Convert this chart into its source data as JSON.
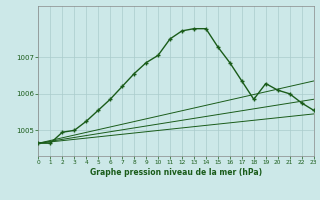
{
  "title": "Graphe pression niveau de la mer (hPa)",
  "background_color": "#cce8e8",
  "grid_color": "#aacccc",
  "line_color": "#1a5c1a",
  "xlim": [
    0,
    23
  ],
  "ylim": [
    1004.3,
    1008.4
  ],
  "yticks": [
    1005,
    1006,
    1007
  ],
  "xticks": [
    0,
    1,
    2,
    3,
    4,
    5,
    6,
    7,
    8,
    9,
    10,
    11,
    12,
    13,
    14,
    15,
    16,
    17,
    18,
    19,
    20,
    21,
    22,
    23
  ],
  "series1_x": [
    0,
    1,
    2,
    3,
    4,
    5,
    6,
    7,
    8,
    9,
    10,
    11,
    12,
    13,
    14,
    15,
    16,
    17,
    18,
    19,
    20,
    21,
    22,
    23
  ],
  "series1_y": [
    1004.65,
    1004.65,
    1004.95,
    1005.0,
    1005.25,
    1005.55,
    1005.85,
    1006.2,
    1006.55,
    1006.85,
    1007.05,
    1007.5,
    1007.72,
    1007.78,
    1007.78,
    1007.28,
    1006.85,
    1006.35,
    1005.85,
    1006.28,
    1006.1,
    1006.0,
    1005.75,
    1005.55
  ],
  "series2_x": [
    0,
    23
  ],
  "series2_y": [
    1004.65,
    1006.35
  ],
  "series3_x": [
    0,
    23
  ],
  "series3_y": [
    1004.65,
    1005.85
  ],
  "series4_x": [
    0,
    23
  ],
  "series4_y": [
    1004.65,
    1005.45
  ]
}
